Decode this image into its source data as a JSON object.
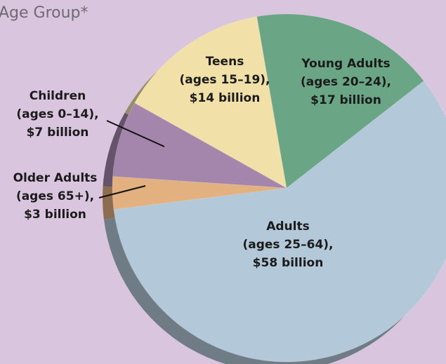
{
  "title": "Age Group*",
  "chart_data": {
    "type": "pie",
    "title": "Age Group*",
    "unit": "billion",
    "slices": [
      {
        "label": "Adults",
        "range": "(ages 25–64),",
        "amount": "$58 billion",
        "value": 58,
        "color": "#b3c8d8"
      },
      {
        "label": "Older Adults",
        "range": "(ages 65+),",
        "amount": "$3 billion",
        "value": 3,
        "color": "#e3b07f"
      },
      {
        "label": "Children",
        "range": "(ages 0–14),",
        "amount": "$7 billion",
        "value": 7,
        "color": "#a486ad"
      },
      {
        "label": "Teens",
        "range": "(ages 15–19),",
        "amount": "$14 billion",
        "value": 14,
        "color": "#f1e1a9"
      },
      {
        "label": "Young Adults",
        "range": "(ages 20–24),",
        "amount": "$17 billion",
        "value": 17,
        "color": "#6aa586"
      }
    ]
  }
}
